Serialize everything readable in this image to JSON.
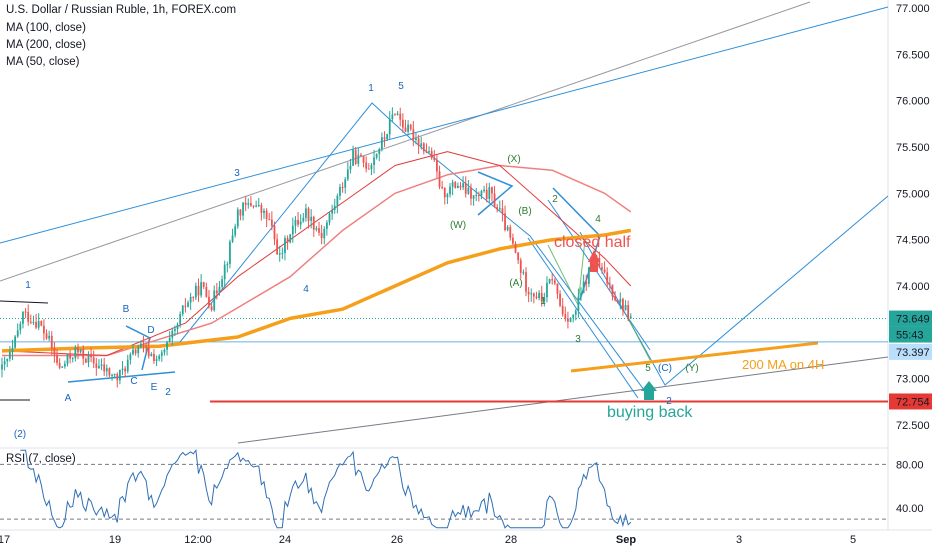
{
  "header": {
    "title": "U.S. Dollar / Russian Ruble, 1h, FOREX.com",
    "ma_labels": [
      "MA (100, close)",
      "MA (200, close)",
      "MA (50, close)"
    ]
  },
  "rsi": {
    "label": "RSI (7, close)",
    "ticks": [
      "80.00",
      "40.00"
    ],
    "upper": 80,
    "lower": 30
  },
  "price_axis": {
    "ticks": [
      "77.000",
      "76.500",
      "76.000",
      "75.500",
      "75.000",
      "74.500",
      "74.000",
      "73.500",
      "73.000",
      "72.500"
    ],
    "current_price": "73.649",
    "countdown": "55:43",
    "level_blue": "73.397",
    "level_red": "72.754"
  },
  "time_axis": {
    "ticks": [
      "17",
      "19",
      "12:00",
      "24",
      "26",
      "28",
      "Sep",
      "3",
      "5"
    ]
  },
  "annotations": {
    "closed_half": "closed half",
    "buying_back": "buying back",
    "ma200_4h": "200 MA on 4H"
  },
  "wave_labels": {
    "blue": [
      "1",
      "(2)",
      "A",
      "B",
      "C",
      "D",
      "E",
      "2",
      "3",
      "4",
      "1",
      "5",
      "(C)",
      "2"
    ],
    "green": [
      "(X)",
      "(W)",
      "(B)",
      "(A)",
      "1",
      "2",
      "3",
      "4",
      "5",
      "(Y)"
    ]
  },
  "colors": {
    "up": "#26a69a",
    "down": "#ef5350",
    "ma200": "#f59f1a",
    "ma100": "#f08080",
    "ma50": "#e03b3b",
    "blue_line": "#2f8fd8",
    "gray_line": "#787b86",
    "rsi": "#2f6fb5",
    "red_level": "#e53935"
  },
  "chart_data": {
    "type": "candlestick",
    "title": "U.S. Dollar / Russian Ruble, 1h, FOREX.com",
    "ylim": [
      72.2,
      77.1
    ],
    "y_ticks": [
      72.5,
      73.0,
      73.5,
      74.0,
      74.5,
      75.0,
      75.5,
      76.0,
      76.5,
      77.0
    ],
    "x_ticks": [
      "17",
      "19",
      "12:00",
      "24",
      "26",
      "28",
      "Sep",
      "3",
      "5"
    ],
    "waypoints": [
      [
        0,
        73.1
      ],
      [
        4,
        73.3
      ],
      [
        8,
        73.7
      ],
      [
        14,
        73.6
      ],
      [
        18,
        73.4
      ],
      [
        22,
        73.1
      ],
      [
        28,
        73.3
      ],
      [
        36,
        73.15
      ],
      [
        44,
        73.0
      ],
      [
        52,
        73.35
      ],
      [
        60,
        73.2
      ],
      [
        66,
        73.5
      ],
      [
        70,
        73.8
      ],
      [
        76,
        74.0
      ],
      [
        80,
        73.8
      ],
      [
        86,
        74.3
      ],
      [
        90,
        74.8
      ],
      [
        96,
        74.9
      ],
      [
        102,
        74.7
      ],
      [
        106,
        74.3
      ],
      [
        110,
        74.6
      ],
      [
        116,
        74.8
      ],
      [
        122,
        74.55
      ],
      [
        128,
        74.95
      ],
      [
        134,
        75.4
      ],
      [
        140,
        75.3
      ],
      [
        146,
        75.6
      ],
      [
        150,
        75.9
      ],
      [
        154,
        75.7
      ],
      [
        158,
        75.6
      ],
      [
        164,
        75.4
      ],
      [
        168,
        75.0
      ],
      [
        174,
        75.1
      ],
      [
        180,
        74.95
      ],
      [
        186,
        75.0
      ],
      [
        190,
        74.8
      ],
      [
        196,
        74.35
      ],
      [
        200,
        74.0
      ],
      [
        206,
        73.85
      ],
      [
        210,
        74.1
      ],
      [
        214,
        73.7
      ],
      [
        218,
        73.65
      ],
      [
        222,
        74.0
      ],
      [
        226,
        74.3
      ],
      [
        230,
        74.1
      ],
      [
        234,
        73.9
      ],
      [
        238,
        73.75
      ],
      [
        240,
        73.65
      ]
    ],
    "ma200_points": [
      [
        0,
        73.3
      ],
      [
        30,
        73.33
      ],
      [
        60,
        73.35
      ],
      [
        90,
        73.45
      ],
      [
        110,
        73.65
      ],
      [
        130,
        73.75
      ],
      [
        150,
        74.0
      ],
      [
        170,
        74.25
      ],
      [
        190,
        74.4
      ],
      [
        210,
        74.5
      ],
      [
        230,
        74.55
      ],
      [
        240,
        74.6
      ]
    ],
    "ma100_points": [
      [
        0,
        73.25
      ],
      [
        40,
        73.25
      ],
      [
        80,
        73.6
      ],
      [
        110,
        74.1
      ],
      [
        130,
        74.6
      ],
      [
        150,
        75.0
      ],
      [
        170,
        75.2
      ],
      [
        190,
        75.3
      ],
      [
        210,
        75.25
      ],
      [
        230,
        75.0
      ],
      [
        240,
        74.8
      ]
    ],
    "ma50_points": [
      [
        0,
        73.3
      ],
      [
        40,
        73.25
      ],
      [
        70,
        73.6
      ],
      [
        90,
        74.1
      ],
      [
        110,
        74.5
      ],
      [
        130,
        74.9
      ],
      [
        150,
        75.3
      ],
      [
        170,
        75.45
      ],
      [
        190,
        75.3
      ],
      [
        210,
        74.8
      ],
      [
        230,
        74.3
      ],
      [
        240,
        74.0
      ]
    ],
    "horizontal_levels": {
      "blue": 73.397,
      "red": 72.754,
      "last": 73.649
    },
    "rsi_ylim": [
      20,
      95
    ],
    "rsi_levels": [
      80,
      30
    ]
  }
}
